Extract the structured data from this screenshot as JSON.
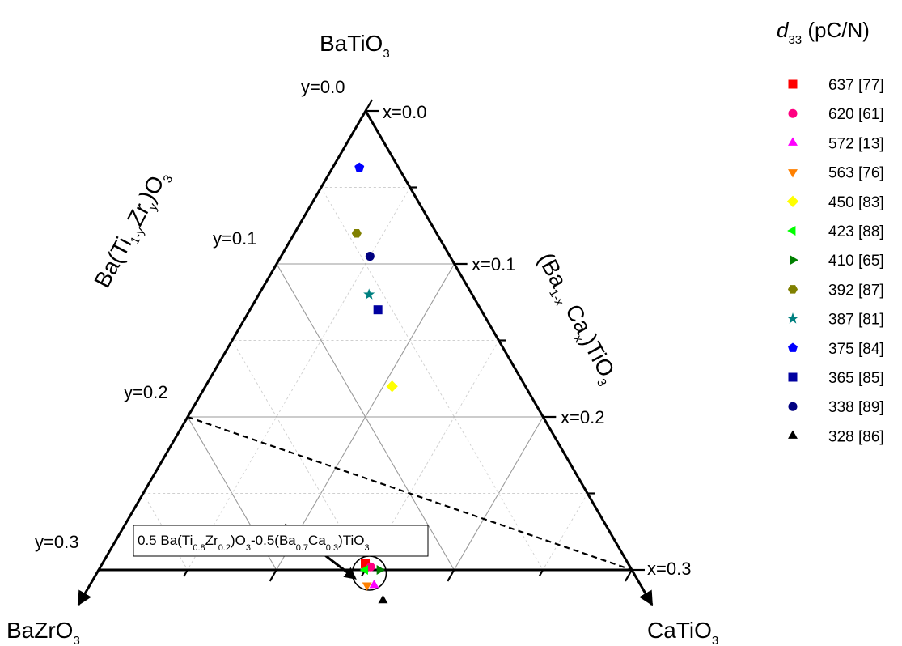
{
  "chart_data": {
    "type": "scatter",
    "subtype": "ternary",
    "vertices": {
      "top": {
        "main": "BaTiO",
        "sub": "3"
      },
      "left": {
        "main": "BaZrO",
        "sub": "3"
      },
      "right": {
        "main": "CaTiO",
        "sub": "3"
      }
    },
    "axis_titles": {
      "y_axis": {
        "parts": [
          [
            "Ba(Ti",
            ""
          ],
          [
            "1-y",
            "sub"
          ],
          [
            "Zr",
            ""
          ],
          [
            "y",
            "sub"
          ],
          [
            ")O",
            ""
          ],
          [
            "3",
            "sub"
          ]
        ]
      },
      "x_axis": {
        "parts": [
          [
            "(Ba",
            ""
          ],
          [
            "1-x",
            "sub"
          ],
          [
            " Ca",
            ""
          ],
          [
            "x",
            "sub"
          ],
          [
            ")TiO",
            ""
          ],
          [
            "3",
            "sub"
          ]
        ]
      }
    },
    "y_ticks": [
      "y=0.0",
      "y=0.1",
      "y=0.2",
      "y=0.3"
    ],
    "x_ticks": [
      "x=0.0",
      "x=0.1",
      "x=0.2",
      "x=0.3"
    ],
    "x_range": [
      0,
      0.3
    ],
    "y_range": [
      0,
      0.3
    ],
    "grid": true,
    "legend_title": {
      "italic": "d",
      "sub": "33",
      "rest": " (pC/N)"
    },
    "legend_placement": "right",
    "series": [
      {
        "label": "637 [77]",
        "x": 0.148,
        "y": 0.148,
        "color": "#ff0000",
        "marker": "square"
      },
      {
        "label": "620 [61]",
        "x": 0.152,
        "y": 0.146,
        "color": "#ff0080",
        "marker": "circle"
      },
      {
        "label": "572 [13]",
        "x": 0.16,
        "y": 0.15,
        "color": "#ff00ff",
        "marker": "triangle-up"
      },
      {
        "label": "563 [76]",
        "x": 0.156,
        "y": 0.154,
        "color": "#ff8000",
        "marker": "triangle-down"
      },
      {
        "label": "450 [83]",
        "x": 0.105,
        "y": 0.075,
        "color": "#ffff00",
        "marker": "diamond"
      },
      {
        "label": "423 [88]",
        "x": 0.15,
        "y": 0.15,
        "color": "#00ff00",
        "marker": "triangle-left"
      },
      {
        "label": "410 [65]",
        "x": 0.158,
        "y": 0.142,
        "color": "#008000",
        "marker": "triangle-right"
      },
      {
        "label": "392 [87]",
        "x": 0.035,
        "y": 0.045,
        "color": "#808000",
        "marker": "hexagon"
      },
      {
        "label": "387 [81]",
        "x": 0.062,
        "y": 0.058,
        "color": "#008080",
        "marker": "star"
      },
      {
        "label": "375 [84]",
        "x": 0.015,
        "y": 0.022,
        "color": "#0000ff",
        "marker": "pentagon"
      },
      {
        "label": "365 [85]",
        "x": 0.072,
        "y": 0.058,
        "color": "#0000a0",
        "marker": "square"
      },
      {
        "label": "338 [89]",
        "x": 0.05,
        "y": 0.045,
        "color": "#000080",
        "marker": "circle"
      },
      {
        "label": "328 [86]",
        "x": 0.17,
        "y": 0.15,
        "color": "#000000",
        "marker": "triangle-up"
      }
    ],
    "dashed_line": {
      "from": {
        "x": 0,
        "y": 0.2
      },
      "to": {
        "x": 0.3,
        "y": 0
      }
    },
    "highlight_circle": {
      "x": 0.15,
      "y": 0.15
    },
    "annotation": {
      "parts": [
        [
          "0.5 Ba(Ti",
          ""
        ],
        [
          "0.8",
          "sub"
        ],
        [
          "Zr",
          ""
        ],
        [
          "0.2",
          "sub"
        ],
        [
          ")O",
          ""
        ],
        [
          "3",
          "sub"
        ],
        [
          "-0.5(Ba",
          ""
        ],
        [
          "0.7",
          "sub"
        ],
        [
          "Ca",
          ""
        ],
        [
          "0.3",
          "sub"
        ],
        [
          ")TiO",
          ""
        ],
        [
          "3",
          "sub"
        ]
      ]
    }
  }
}
